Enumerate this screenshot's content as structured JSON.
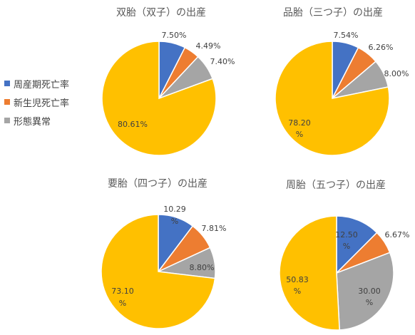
{
  "legend": [
    {
      "label": "周産期死亡率",
      "color": "#4472C4"
    },
    {
      "label": "新生児死亡率",
      "color": "#ED7D31"
    },
    {
      "label": "形態異常",
      "color": "#A5A5A5"
    }
  ],
  "other_color": "#FFC000",
  "chart_data": [
    {
      "type": "pie",
      "title": "双胎（双子）の出産",
      "slices": [
        {
          "label": "周産期死亡率",
          "value": 7.5,
          "text": "7.50%"
        },
        {
          "label": "新生児死亡率",
          "value": 4.49,
          "text": "4.49%"
        },
        {
          "label": "形態異常",
          "value": 7.4,
          "text": "7.40%"
        },
        {
          "label": "",
          "value": 80.61,
          "text": "80.61%"
        }
      ]
    },
    {
      "type": "pie",
      "title": "品胎（三つ子）の出産",
      "slices": [
        {
          "label": "周産期死亡率",
          "value": 7.54,
          "text": "7.54%"
        },
        {
          "label": "新生児死亡率",
          "value": 6.26,
          "text": "6.26%"
        },
        {
          "label": "形態異常",
          "value": 8.0,
          "text": "8.00%"
        },
        {
          "label": "",
          "value": 78.2,
          "text": "78.20%"
        }
      ]
    },
    {
      "type": "pie",
      "title": "要胎（四つ子）の出産",
      "slices": [
        {
          "label": "周産期死亡率",
          "value": 10.29,
          "text": "10.29%"
        },
        {
          "label": "新生児死亡率",
          "value": 7.81,
          "text": "7.81%"
        },
        {
          "label": "形態異常",
          "value": 8.8,
          "text": "8.80%"
        },
        {
          "label": "",
          "value": 73.1,
          "text": "73.10%"
        }
      ]
    },
    {
      "type": "pie",
      "title": "周胎（五つ子）の出産",
      "slices": [
        {
          "label": "周産期死亡率",
          "value": 12.5,
          "text": "12.50%"
        },
        {
          "label": "新生児死亡率",
          "value": 6.67,
          "text": "6.67%"
        },
        {
          "label": "形態異常",
          "value": 30.0,
          "text": "30.00%"
        },
        {
          "label": "",
          "value": 50.83,
          "text": "50.83%"
        }
      ]
    }
  ]
}
